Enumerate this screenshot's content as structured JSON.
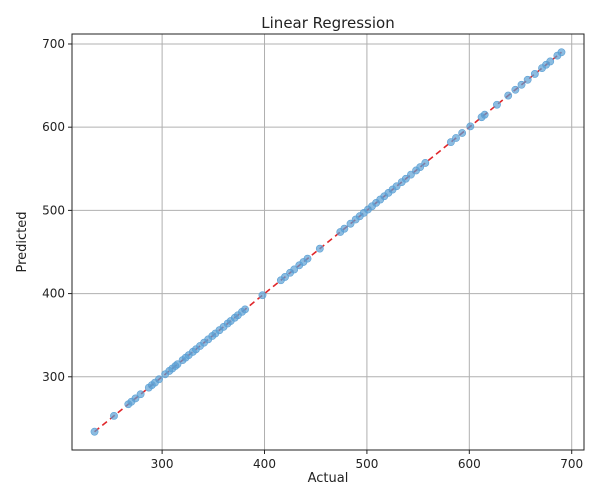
{
  "chart_data": {
    "type": "scatter",
    "title": "Linear Regression",
    "xlabel": "Actual",
    "ylabel": "Predicted",
    "xlim": [
      212,
      712
    ],
    "ylim": [
      212,
      712
    ],
    "x_ticks": [
      300,
      400,
      500,
      600,
      700
    ],
    "y_ticks": [
      300,
      400,
      500,
      600,
      700
    ],
    "grid": true,
    "point_color": "#5a9fd4",
    "fit_line_color": "#e0262a",
    "fit_line": {
      "x": [
        234,
        690
      ],
      "y": [
        234,
        690
      ]
    },
    "series": [
      {
        "values": [
          [
            234,
            234
          ],
          [
            253,
            253
          ],
          [
            267,
            267
          ],
          [
            270,
            270
          ],
          [
            274,
            274
          ],
          [
            279,
            279
          ],
          [
            287,
            287
          ],
          [
            290,
            290
          ],
          [
            293,
            293
          ],
          [
            297,
            297
          ],
          [
            303,
            303
          ],
          [
            307,
            307
          ],
          [
            310,
            310
          ],
          [
            313,
            313
          ],
          [
            315,
            315
          ],
          [
            320,
            320
          ],
          [
            323,
            323
          ],
          [
            326,
            326
          ],
          [
            330,
            330
          ],
          [
            333,
            333
          ],
          [
            337,
            337
          ],
          [
            341,
            341
          ],
          [
            345,
            345
          ],
          [
            349,
            349
          ],
          [
            352,
            352
          ],
          [
            356,
            356
          ],
          [
            360,
            360
          ],
          [
            364,
            364
          ],
          [
            367,
            367
          ],
          [
            371,
            371
          ],
          [
            374,
            374
          ],
          [
            378,
            378
          ],
          [
            381,
            381
          ],
          [
            398,
            398
          ],
          [
            416,
            416
          ],
          [
            420,
            420
          ],
          [
            425,
            425
          ],
          [
            429,
            429
          ],
          [
            434,
            434
          ],
          [
            438,
            438
          ],
          [
            442,
            442
          ],
          [
            454,
            454
          ],
          [
            474,
            474
          ],
          [
            478,
            478
          ],
          [
            484,
            484
          ],
          [
            489,
            489
          ],
          [
            493,
            493
          ],
          [
            497,
            497
          ],
          [
            501,
            501
          ],
          [
            505,
            505
          ],
          [
            509,
            509
          ],
          [
            513,
            513
          ],
          [
            517,
            517
          ],
          [
            521,
            521
          ],
          [
            525,
            525
          ],
          [
            529,
            529
          ],
          [
            534,
            534
          ],
          [
            538,
            538
          ],
          [
            543,
            543
          ],
          [
            548,
            548
          ],
          [
            552,
            552
          ],
          [
            557,
            557
          ],
          [
            582,
            582
          ],
          [
            587,
            587
          ],
          [
            593,
            593
          ],
          [
            601,
            601
          ],
          [
            612,
            612
          ],
          [
            615,
            615
          ],
          [
            627,
            627
          ],
          [
            638,
            638
          ],
          [
            645,
            645
          ],
          [
            651,
            651
          ],
          [
            657,
            657
          ],
          [
            664,
            664
          ],
          [
            671,
            671
          ],
          [
            675,
            675
          ],
          [
            679,
            679
          ],
          [
            686,
            686
          ],
          [
            690,
            690
          ]
        ]
      }
    ]
  }
}
